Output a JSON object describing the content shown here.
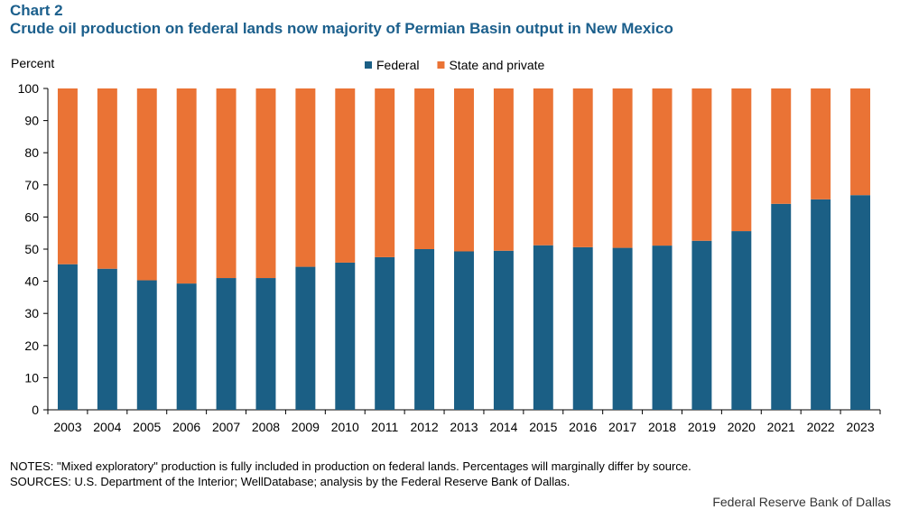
{
  "header": {
    "chart_number": "Chart 2",
    "title": "Crude oil production on federal lands now majority of Permian Basin output in New Mexico"
  },
  "colors": {
    "federal": "#1b5f85",
    "state_private": "#ea7335",
    "title": "#1b5f8c"
  },
  "chart_data": {
    "type": "bar",
    "stacked": true,
    "ylabel": "Percent",
    "ylim": [
      0,
      100
    ],
    "yticks": [
      0,
      10,
      20,
      30,
      40,
      50,
      60,
      70,
      80,
      90,
      100
    ],
    "grid": false,
    "legend_position": "top-center",
    "categories": [
      "2003",
      "2004",
      "2005",
      "2006",
      "2007",
      "2008",
      "2009",
      "2010",
      "2011",
      "2012",
      "2013",
      "2014",
      "2015",
      "2016",
      "2017",
      "2018",
      "2019",
      "2020",
      "2021",
      "2022",
      "2023"
    ],
    "series": [
      {
        "name": "Federal",
        "values": [
          45.3,
          43.9,
          40.3,
          39.3,
          41.0,
          41.0,
          44.5,
          45.8,
          47.5,
          50.0,
          49.3,
          49.5,
          51.2,
          50.6,
          50.4,
          51.1,
          52.6,
          55.6,
          64.1,
          65.5,
          66.8
        ]
      },
      {
        "name": "State and private",
        "values": [
          54.7,
          56.1,
          59.7,
          60.7,
          59.0,
          59.0,
          55.5,
          54.2,
          52.5,
          50.0,
          50.7,
          50.5,
          48.8,
          49.4,
          49.6,
          48.9,
          47.4,
          44.4,
          35.9,
          34.5,
          33.2
        ]
      }
    ]
  },
  "footer": {
    "notes": "NOTES: \"Mixed exploratory\" production is fully included in production on federal lands. Percentages will marginally differ by source.",
    "sources": "SOURCES: U.S. Department of the Interior;  WellDatabase; analysis by the Federal Reserve Bank of Dallas.",
    "credit": "Federal Reserve Bank of Dallas"
  }
}
